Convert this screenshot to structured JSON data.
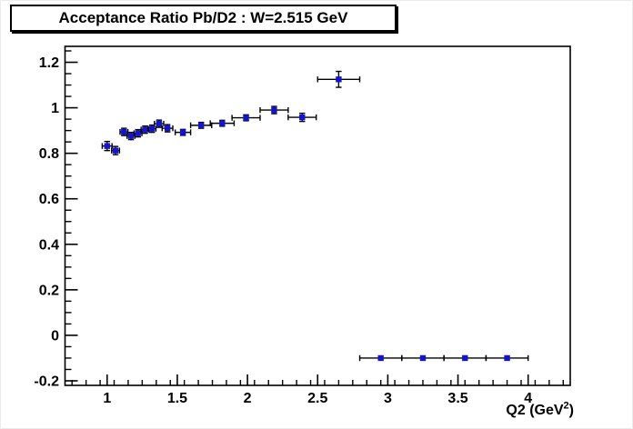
{
  "title": "Acceptance Ratio Pb/D2 : W=2.515 GeV",
  "colors": {
    "marker": "#1414cc",
    "axis": "#000000",
    "background": "#ffffff",
    "title_border": "#000000"
  },
  "chart_data": {
    "type": "scatter",
    "title": "Acceptance Ratio Pb/D2 : W=2.515 GeV",
    "xlabel": "Q2 (GeV^2)",
    "xlabel_main": "Q2 (GeV",
    "xlabel_sup": "2",
    "xlabel_close": ")",
    "ylabel": "",
    "xlim": [
      0.7,
      4.3
    ],
    "ylim": [
      -0.22,
      1.27
    ],
    "x_major_ticks": [
      1,
      1.5,
      2,
      2.5,
      3,
      3.5,
      4
    ],
    "x_tick_labels": [
      "1",
      "1.5",
      "2",
      "2.5",
      "3",
      "3.5",
      "4"
    ],
    "x_minor_step": 0.1,
    "y_major_ticks": [
      -0.2,
      0,
      0.2,
      0.4,
      0.6,
      0.8,
      1,
      1.2
    ],
    "y_tick_labels": [
      "-0.2",
      "0",
      "0.2",
      "0.4",
      "0.6",
      "0.8",
      "1",
      "1.2"
    ],
    "y_minor_step": 0.05,
    "grid": false,
    "legend": false,
    "marker": "square",
    "series": [
      {
        "name": "Pb/D2 acceptance ratio",
        "points": [
          {
            "x": 1.0,
            "y": 0.832,
            "ex": 0.035,
            "ey": 0.02
          },
          {
            "x": 1.06,
            "y": 0.812,
            "ex": 0.028,
            "ey": 0.018
          },
          {
            "x": 1.12,
            "y": 0.894,
            "ex": 0.028,
            "ey": 0.016
          },
          {
            "x": 1.17,
            "y": 0.876,
            "ex": 0.028,
            "ey": 0.016
          },
          {
            "x": 1.22,
            "y": 0.888,
            "ex": 0.028,
            "ey": 0.016
          },
          {
            "x": 1.27,
            "y": 0.904,
            "ex": 0.028,
            "ey": 0.016
          },
          {
            "x": 1.32,
            "y": 0.908,
            "ex": 0.028,
            "ey": 0.016
          },
          {
            "x": 1.37,
            "y": 0.93,
            "ex": 0.033,
            "ey": 0.016
          },
          {
            "x": 1.43,
            "y": 0.91,
            "ex": 0.038,
            "ey": 0.016
          },
          {
            "x": 1.54,
            "y": 0.892,
            "ex": 0.055,
            "ey": 0.013
          },
          {
            "x": 1.67,
            "y": 0.923,
            "ex": 0.075,
            "ey": 0.013
          },
          {
            "x": 1.82,
            "y": 0.932,
            "ex": 0.085,
            "ey": 0.013
          },
          {
            "x": 1.99,
            "y": 0.956,
            "ex": 0.1,
            "ey": 0.013
          },
          {
            "x": 2.19,
            "y": 0.99,
            "ex": 0.1,
            "ey": 0.016
          },
          {
            "x": 2.39,
            "y": 0.958,
            "ex": 0.1,
            "ey": 0.018
          },
          {
            "x": 2.65,
            "y": 1.125,
            "ex": 0.15,
            "ey": 0.035
          },
          {
            "x": 2.95,
            "y": -0.1,
            "ex": 0.15,
            "ey": 0
          },
          {
            "x": 3.25,
            "y": -0.1,
            "ex": 0.15,
            "ey": 0
          },
          {
            "x": 3.55,
            "y": -0.1,
            "ex": 0.15,
            "ey": 0
          },
          {
            "x": 3.85,
            "y": -0.1,
            "ex": 0.15,
            "ey": 0
          }
        ]
      }
    ]
  }
}
